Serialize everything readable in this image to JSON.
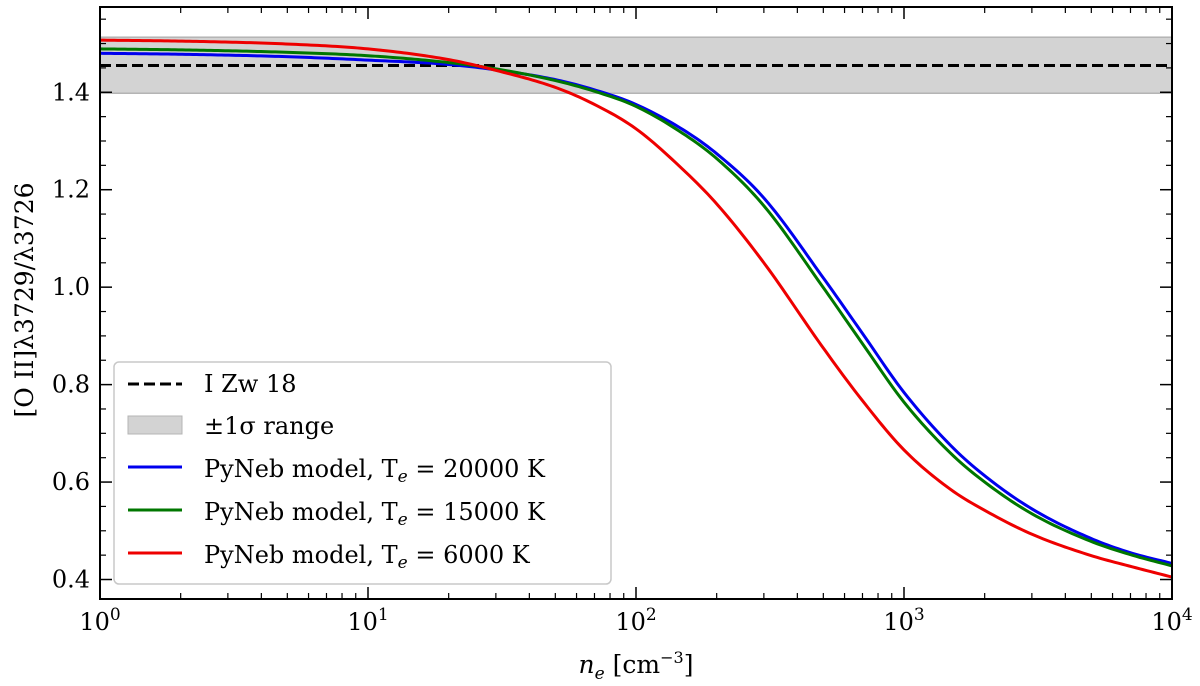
{
  "chart_data": {
    "type": "line",
    "x_scale": "log",
    "xlim": [
      1,
      10000
    ],
    "ylim": [
      0.36,
      1.575
    ],
    "xlabel": {
      "italic": "n",
      "sub": "e",
      "unit_prefix": " [cm",
      "unit_exp": "−3",
      "unit_suffix": "]"
    },
    "ylabel": "[O II]λ3729/λ3726",
    "x_ticks": [
      {
        "base": "10",
        "exp": "0"
      },
      {
        "base": "10",
        "exp": "1"
      },
      {
        "base": "10",
        "exp": "2"
      },
      {
        "base": "10",
        "exp": "3"
      },
      {
        "base": "10",
        "exp": "4"
      }
    ],
    "x_tick_values": [
      1,
      10,
      100,
      1000,
      10000
    ],
    "y_ticks": [
      "0.4",
      "0.6",
      "0.8",
      "1.0",
      "1.2",
      "1.4"
    ],
    "y_tick_values": [
      0.4,
      0.6,
      0.8,
      1.0,
      1.2,
      1.4
    ],
    "reference": {
      "name": "I Zw 18",
      "value": 1.455,
      "band_low": 1.398,
      "band_high": 1.513,
      "band_label": "±1σ range"
    },
    "series": [
      {
        "name": "PyNeb model",
        "te_label": "T",
        "te_sub": "e",
        "te_value": " = 20000 K",
        "color": "#0000ee",
        "x": [
          1,
          2,
          5,
          10,
          20,
          30,
          50,
          70,
          100,
          150,
          200,
          300,
          500,
          700,
          1000,
          1500,
          2000,
          3000,
          5000,
          7000,
          10000
        ],
        "y": [
          1.48,
          1.478,
          1.473,
          1.466,
          1.457,
          1.446,
          1.426,
          1.405,
          1.375,
          1.323,
          1.274,
          1.183,
          1.019,
          0.905,
          0.784,
          0.674,
          0.613,
          0.545,
          0.484,
          0.455,
          0.433
        ]
      },
      {
        "name": "PyNeb model",
        "te_label": "T",
        "te_sub": "e",
        "te_value": " = 15000 K",
        "color": "#007700",
        "x": [
          1,
          2,
          5,
          10,
          20,
          30,
          50,
          70,
          100,
          150,
          200,
          300,
          500,
          700,
          1000,
          1500,
          2000,
          3000,
          5000,
          7000,
          10000
        ],
        "y": [
          1.489,
          1.487,
          1.482,
          1.475,
          1.461,
          1.448,
          1.424,
          1.402,
          1.371,
          1.315,
          1.264,
          1.167,
          0.999,
          0.884,
          0.764,
          0.658,
          0.6,
          0.535,
          0.478,
          0.451,
          0.428
        ]
      },
      {
        "name": "PyNeb model",
        "te_label": "T",
        "te_sub": "e",
        "te_value": " = 6000 K",
        "color": "#ee0000",
        "x": [
          1,
          2,
          5,
          10,
          20,
          30,
          50,
          70,
          100,
          150,
          200,
          300,
          500,
          700,
          1000,
          1500,
          2000,
          3000,
          5000,
          7000,
          10000
        ],
        "y": [
          1.507,
          1.505,
          1.499,
          1.489,
          1.467,
          1.445,
          1.41,
          1.375,
          1.325,
          1.241,
          1.171,
          1.05,
          0.875,
          0.767,
          0.666,
          0.584,
          0.542,
          0.493,
          0.449,
          0.427,
          0.405
        ]
      }
    ],
    "legend_position": "lower-left",
    "grid": false
  }
}
